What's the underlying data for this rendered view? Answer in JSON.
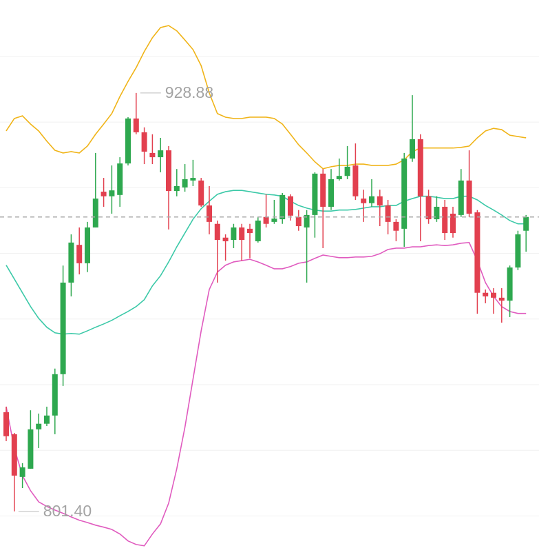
{
  "chart_data": {
    "type": "candlestick",
    "up_color": "#2ea84f",
    "down_color": "#e2404f",
    "ylim": [
      787.5,
      957.2
    ],
    "yticks": [
      800,
      820,
      840,
      860,
      880,
      900,
      920,
      940
    ],
    "grid": true,
    "open": [
      831.6,
      824.9,
      811.9,
      814.4,
      826.4,
      828.1,
      830.6,
      843.2,
      871.1,
      882.6,
      877.0,
      887.9,
      898.8,
      897.4,
      897.8,
      907.4,
      921.1,
      916.9,
      910.6,
      909.3,
      911.4,
      899.0,
      900.1,
      902.2,
      902.2,
      894.6,
      889.0,
      884.8,
      884.1,
      887.9,
      887.5,
      883.7,
      891.1,
      889.6,
      890.4,
      897.4,
      891.1,
      887.9,
      891.7,
      904.3,
      894.2,
      902.6,
      903.6,
      906.8,
      896.7,
      895.3,
      897.4,
      894.6,
      889.6,
      887.5,
      908.9,
      914.8,
      897.4,
      890.4,
      894.2,
      892.1,
      891.7,
      902.2,
      892.5,
      868.0,
      868.0,
      866.5,
      865.6,
      875.7,
      886.9
    ],
    "close": [
      824.3,
      812.3,
      814.8,
      826.4,
      828.1,
      830.6,
      843.2,
      871.1,
      883.3,
      877.0,
      887.9,
      896.7,
      897.4,
      899.2,
      907.4,
      921.1,
      916.9,
      911.0,
      909.3,
      911.4,
      899.0,
      900.5,
      902.6,
      903.0,
      894.6,
      889.6,
      884.1,
      883.7,
      887.9,
      884.1,
      886.2,
      890.0,
      889.0,
      890.6,
      897.8,
      891.5,
      888.3,
      891.7,
      904.3,
      894.2,
      902.6,
      903.6,
      906.4,
      897.4,
      895.3,
      897.4,
      894.6,
      889.6,
      886.9,
      908.9,
      914.8,
      897.4,
      890.4,
      894.2,
      886.2,
      886.2,
      902.2,
      892.1,
      868.0,
      866.9,
      866.5,
      865.6,
      875.7,
      885.8,
      891.1
    ],
    "high": [
      833.3,
      825.3,
      816.1,
      832.2,
      831.2,
      833.3,
      844.9,
      876.3,
      885.8,
      887.9,
      889.6,
      910.6,
      903.0,
      906.8,
      909.3,
      921.5,
      928.88,
      918.4,
      916.3,
      915.2,
      912.7,
      905.7,
      907.2,
      908.5,
      903.0,
      900.5,
      890.0,
      885.8,
      889.0,
      889.0,
      889.0,
      891.1,
      898.0,
      896.3,
      898.4,
      898.0,
      893.2,
      893.2,
      904.7,
      905.7,
      905.7,
      908.9,
      912.7,
      913.5,
      899.4,
      902.6,
      899.4,
      896.3,
      890.4,
      910.6,
      928.2,
      916.3,
      899.4,
      897.4,
      896.3,
      894.2,
      905.7,
      911.4,
      893.2,
      869.0,
      869.4,
      869.4,
      876.3,
      886.9,
      891.7
    ],
    "low": [
      822.8,
      801.4,
      808.5,
      814.4,
      820.7,
      827.4,
      824.9,
      839.6,
      866.9,
      873.6,
      874.3,
      887.9,
      894.2,
      892.1,
      894.2,
      906.8,
      916.3,
      907.2,
      907.2,
      904.7,
      887.3,
      897.4,
      898.8,
      900.5,
      894.2,
      885.8,
      871.1,
      877.8,
      881.6,
      877.8,
      878.5,
      883.3,
      887.9,
      889.0,
      889.0,
      890.0,
      886.9,
      871.1,
      884.8,
      881.6,
      893.2,
      902.2,
      902.6,
      896.3,
      889.6,
      894.2,
      888.3,
      885.8,
      883.7,
      882.0,
      907.9,
      883.7,
      889.0,
      889.6,
      884.1,
      884.8,
      891.1,
      891.1,
      861.6,
      864.8,
      861.6,
      858.9,
      860.6,
      874.9,
      880.5
    ],
    "overlays": [
      {
        "color": "#f0b418",
        "values": [
          917.3,
          921.1,
          921.9,
          919.4,
          917.3,
          914.2,
          911.4,
          910.6,
          911.0,
          910.6,
          912.7,
          916.3,
          919.4,
          922.6,
          927.8,
          932.4,
          936.6,
          941.5,
          945.7,
          948.8,
          949.4,
          947.8,
          945.0,
          942.1,
          937.2,
          928.9,
          922.6,
          921.5,
          921.1,
          921.1,
          921.5,
          921.5,
          921.5,
          921.1,
          919.4,
          916.3,
          913.1,
          910.6,
          907.9,
          905.8,
          906.4,
          906.8,
          906.8,
          907.2,
          907.2,
          906.8,
          906.8,
          906.8,
          907.2,
          908.5,
          911.0,
          912.1,
          912.1,
          912.1,
          912.1,
          912.1,
          912.3,
          912.7,
          915.2,
          917.3,
          918.1,
          917.7,
          916.0,
          915.6,
          915.2
        ]
      },
      {
        "color": "#3cc9a8",
        "values": [
          876.4,
          872.2,
          868.0,
          863.8,
          860.2,
          857.5,
          855.8,
          855.4,
          855.6,
          855.4,
          856.4,
          857.5,
          858.5,
          859.6,
          861.0,
          862.3,
          863.8,
          865.9,
          870.1,
          873.2,
          877.4,
          882.0,
          886.2,
          890.4,
          893.6,
          895.9,
          898.0,
          898.8,
          899.2,
          899.2,
          898.8,
          898.4,
          898.0,
          897.8,
          897.4,
          895.9,
          894.6,
          893.8,
          893.2,
          892.9,
          892.9,
          893.2,
          893.2,
          893.4,
          893.8,
          894.2,
          894.2,
          894.6,
          894.6,
          895.9,
          896.7,
          897.4,
          897.4,
          897.1,
          896.7,
          896.7,
          897.4,
          897.4,
          896.3,
          894.6,
          893.2,
          891.7,
          890.0,
          889.0,
          889.0
        ]
      },
      {
        "color": "#e05bbf",
        "values": [
          833.3,
          820.7,
          812.3,
          807.7,
          804.3,
          802.9,
          801.8,
          800.8,
          799.7,
          798.7,
          798.0,
          797.2,
          796.6,
          795.9,
          794.5,
          792.4,
          791.3,
          790.9,
          794.5,
          797.6,
          803.9,
          814.4,
          827.0,
          841.7,
          856.4,
          869.0,
          874.3,
          876.4,
          877.4,
          877.8,
          878.2,
          877.4,
          876.4,
          875.3,
          875.3,
          876.0,
          877.0,
          877.4,
          878.5,
          879.5,
          879.1,
          878.7,
          878.7,
          878.9,
          878.9,
          879.1,
          879.9,
          881.2,
          881.6,
          881.6,
          882.0,
          882.0,
          882.4,
          882.6,
          882.4,
          882.6,
          883.1,
          883.3,
          877.8,
          871.1,
          866.9,
          863.8,
          862.3,
          861.7,
          861.7
        ]
      }
    ],
    "annotations": [
      {
        "value": 928.88,
        "label": "928.88"
      },
      {
        "value": 801.4,
        "label": "801.40"
      }
    ]
  }
}
